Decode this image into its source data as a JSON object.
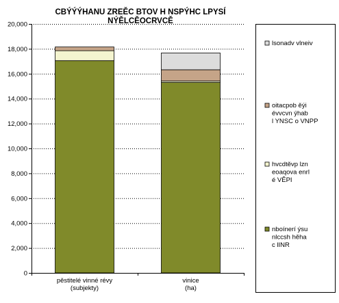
{
  "chart_data": {
    "type": "bar",
    "stacked": true,
    "title_lines": [
      "CBÝÝÝHANU ZREĚC BTOV H NSPÝHC LPYSÍ",
      "NÝĚLCĚOCRVCĚ"
    ],
    "categories": [
      [
        "pěstitelé vinné révy",
        "(subjekty)"
      ],
      [
        "vinice",
        "(ha)"
      ]
    ],
    "ylim": [
      0,
      20000
    ],
    "yticks": [
      0,
      2000,
      4000,
      6000,
      8000,
      10000,
      12000,
      14000,
      16000,
      18000,
      20000
    ],
    "ytick_labels": [
      "0",
      "2,000",
      "4,000",
      "6,000",
      "8,000",
      "10,000",
      "12,000",
      "14,000",
      "16,000",
      "18,000",
      "20,000"
    ],
    "grid": true,
    "legend_position": "right",
    "series": [
      {
        "name_lines": [
          "nboínerí ýsu",
          "nlccsh hěha",
          "c lINR"
        ],
        "color": "#808a2a",
        "values": [
          17050,
          15300
        ]
      },
      {
        "name_lines": [
          "hvcdtěvp lzn",
          "eoaqova enrl",
          "é VĚPI"
        ],
        "color": "#f4f4cf",
        "values": [
          800,
          120
        ]
      },
      {
        "name_lines": [
          "oitacpob ěýi",
          "évvcvn ýhab",
          "l YNSC o VNPP"
        ],
        "color": "#c5a488",
        "values": [
          300,
          900
        ]
      },
      {
        "name_lines": [
          "lsonadv vlneiv"
        ],
        "color": "#dcdcdc",
        "values": [
          0,
          1350
        ]
      }
    ]
  }
}
